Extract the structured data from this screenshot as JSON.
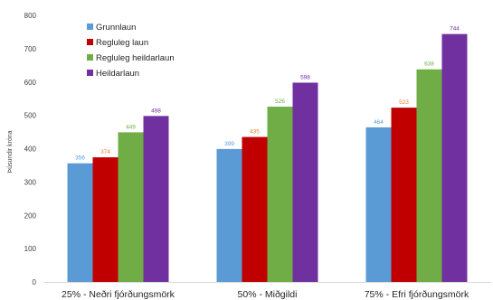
{
  "chart_data": {
    "type": "bar",
    "title": "",
    "xlabel": "",
    "ylabel": "Þúsundir króna",
    "ylim": [
      0,
      800
    ],
    "yticks": [
      "0",
      "100",
      "200",
      "300",
      "400",
      "500",
      "600",
      "700",
      "800"
    ],
    "grid": false,
    "legend_position": "top-left",
    "categories": [
      "25%  - Neðri fjórðungsmörk",
      "50% - Miðgildi",
      "75% - Efri fjórðungsmörk"
    ],
    "series": [
      {
        "name": "Grunnlaun",
        "color": "#5b9bd5",
        "values": [
          356,
          399,
          464
        ]
      },
      {
        "name": "Regluleg laun",
        "color": "#c00000",
        "values": [
          374,
          435,
          523
        ]
      },
      {
        "name": "Regluleg heildarlaun",
        "color": "#70ad47",
        "values": [
          449,
          526,
          638
        ]
      },
      {
        "name": "Heildarlaun",
        "color": "#7030a0",
        "values": [
          498,
          598,
          744
        ]
      }
    ],
    "label_colors": [
      "#5b9bd5",
      "#ed7d31",
      "#70ad47",
      "#7030a0"
    ]
  }
}
